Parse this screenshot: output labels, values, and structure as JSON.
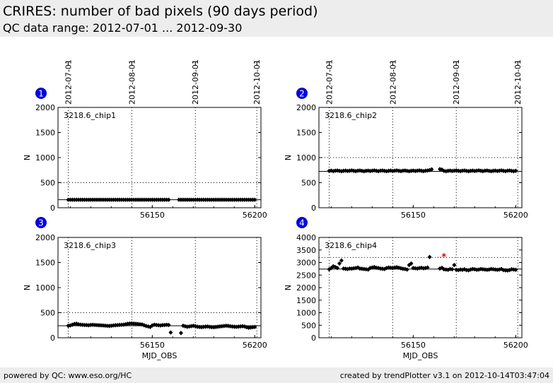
{
  "header": {
    "title": "CRIRES: number of bad pixels (90 days period)",
    "subtitle": "QC data range: 2012-07-01 ... 2012-09-30"
  },
  "footer": {
    "left": "powered by QC: www.eso.org/HC",
    "right": "created by trendPlotter v3.1 on 2012-10-14T03:47:04"
  },
  "top_date_ticks": [
    {
      "label": "2012-07-01",
      "mjd": 56109
    },
    {
      "label": "2012-08-01",
      "mjd": 56140
    },
    {
      "label": "2012-09-01",
      "mjd": 56171
    },
    {
      "label": "2012-10-01",
      "mjd": 56201
    }
  ],
  "chart_data": [
    {
      "type": "scatter",
      "panel": "1",
      "label": "3218.6_chip1",
      "xlabel": "",
      "ylabel": "N",
      "xlim": [
        56104,
        56203
      ],
      "ylim": [
        0,
        2000
      ],
      "xticks": [
        56150,
        56200
      ],
      "yticks": [
        0,
        500,
        1000,
        1500,
        2000
      ],
      "ref_line": 160,
      "threshold_line": 500,
      "x_start": 56109,
      "x_step": 1,
      "values": [
        160,
        160,
        160,
        160,
        160,
        160,
        160,
        160,
        160,
        160,
        160,
        160,
        160,
        160,
        160,
        160,
        160,
        160,
        160,
        160,
        160,
        160,
        160,
        160,
        160,
        160,
        160,
        160,
        160,
        160,
        160,
        160,
        160,
        160,
        160,
        160,
        160,
        160,
        160,
        160,
        160,
        160,
        160,
        160,
        160,
        160,
        160,
        160,
        160,
        160,
        null,
        null,
        null,
        null,
        160,
        160,
        160,
        160,
        160,
        160,
        160,
        160,
        160,
        160,
        160,
        160,
        160,
        160,
        160,
        160,
        160,
        160,
        160,
        160,
        160,
        160,
        160,
        160,
        160,
        160,
        160,
        160,
        160,
        160,
        160,
        160,
        160,
        160,
        160,
        160,
        160,
        160
      ],
      "outliers": []
    },
    {
      "type": "scatter",
      "panel": "2",
      "label": "3218.6_chip2",
      "xlabel": "",
      "ylabel": "N",
      "xlim": [
        56104,
        56203
      ],
      "ylim": [
        0,
        2000
      ],
      "xticks": [
        56150,
        56200
      ],
      "yticks": [
        0,
        500,
        1000,
        1500,
        2000
      ],
      "ref_line": 725,
      "threshold_line": 1000,
      "x_start": 56109,
      "x_step": 1,
      "values": [
        735,
        740,
        730,
        738,
        742,
        735,
        728,
        736,
        740,
        733,
        738,
        744,
        736,
        730,
        738,
        742,
        735,
        728,
        736,
        740,
        733,
        738,
        744,
        736,
        730,
        738,
        742,
        735,
        728,
        736,
        740,
        733,
        738,
        744,
        736,
        730,
        738,
        742,
        735,
        728,
        736,
        740,
        733,
        738,
        744,
        736,
        730,
        738,
        742,
        750,
        765,
        null,
        null,
        null,
        770,
        760,
        735,
        728,
        736,
        740,
        733,
        738,
        744,
        736,
        730,
        738,
        742,
        735,
        728,
        736,
        740,
        733,
        738,
        744,
        736,
        730,
        738,
        742,
        735,
        728,
        736,
        740,
        733,
        738,
        744,
        736,
        730,
        738,
        742,
        735,
        728,
        736
      ],
      "outliers": []
    },
    {
      "type": "scatter",
      "panel": "3",
      "label": "3218.6_chip3",
      "xlabel": "MJD_OBS",
      "ylabel": "N",
      "xlim": [
        56104,
        56203
      ],
      "ylim": [
        0,
        2000
      ],
      "xticks": [
        56150,
        56200
      ],
      "yticks": [
        0,
        500,
        1000,
        1500,
        2000
      ],
      "ref_line": 240,
      "threshold_line": 500,
      "x_start": 56109,
      "x_step": 1,
      "values": [
        240,
        245,
        260,
        275,
        280,
        268,
        262,
        258,
        255,
        252,
        250,
        256,
        258,
        255,
        252,
        250,
        248,
        245,
        242,
        238,
        236,
        240,
        246,
        250,
        252,
        256,
        258,
        262,
        270,
        278,
        284,
        286,
        282,
        278,
        275,
        270,
        265,
        250,
        235,
        225,
        215,
        245,
        260,
        255,
        250,
        245,
        252,
        255,
        258,
        255,
        105,
        null,
        null,
        null,
        null,
        95,
        240,
        230,
        220,
        225,
        232,
        238,
        232,
        220,
        216,
        212,
        218,
        222,
        225,
        218,
        212,
        210,
        215,
        220,
        226,
        230,
        235,
        240,
        236,
        230,
        225,
        220,
        218,
        222,
        226,
        230,
        225,
        210,
        200,
        205,
        210,
        215
      ],
      "outliers": []
    },
    {
      "type": "scatter",
      "panel": "4",
      "label": "3218.6_chip4",
      "xlabel": "MJD_OBS",
      "ylabel": "N",
      "xlim": [
        56104,
        56203
      ],
      "ylim": [
        0,
        4000
      ],
      "xticks": [
        56150,
        56200
      ],
      "yticks": [
        0,
        500,
        1000,
        1500,
        2000,
        2500,
        3000,
        3500,
        4000
      ],
      "ref_line": 2740,
      "threshold_line": 3200,
      "x_start": 56109,
      "x_step": 1,
      "values": [
        2730,
        2780,
        2850,
        2820,
        2780,
        2960,
        3080,
        2760,
        2750,
        2740,
        2760,
        2755,
        2770,
        2780,
        2800,
        2760,
        2750,
        2740,
        2730,
        2720,
        2780,
        2800,
        2820,
        2790,
        2780,
        2760,
        2750,
        2740,
        2780,
        2800,
        2790,
        2780,
        2800,
        2810,
        2790,
        2770,
        2750,
        2740,
        2720,
        2900,
        2960,
        2780,
        2770,
        2760,
        2780,
        2790,
        2770,
        2780,
        2800,
        3220,
        null,
        null,
        null,
        null,
        2760,
        2790,
        2730,
        2720,
        2710,
        2740,
        2730,
        2900,
        2710,
        2700,
        2720,
        2710,
        2730,
        2700,
        2690,
        2720,
        2740,
        2730,
        2710,
        2720,
        2740,
        2730,
        2720,
        2710,
        2720,
        2740,
        2730,
        2720,
        2710,
        2720,
        2740,
        2700,
        2690,
        2680,
        2700,
        2730,
        2720,
        2710
      ],
      "outliers": [
        {
          "mjd": 56165,
          "value": 3210
        }
      ]
    }
  ]
}
